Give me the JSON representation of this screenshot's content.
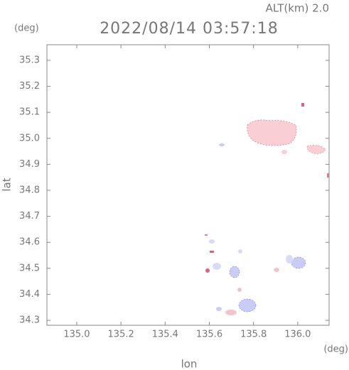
{
  "chart_data": {
    "type": "map",
    "title": "2022/08/14 03:57:18",
    "subtitle": "ALT(km) 2.0",
    "y_unit": "(deg)",
    "x_unit": "(deg)",
    "x_label": "lon",
    "y_label": "lat",
    "xlim": [
      134.865,
      136.142
    ],
    "ylim": [
      34.281,
      35.36
    ],
    "xticks": [
      {
        "value": 135.0,
        "label": "135.0"
      },
      135.2,
      135.4,
      135.6,
      135.8,
      {
        "value": 136.0,
        "label": "136.0"
      }
    ],
    "yticks": [
      34.3,
      34.4,
      34.5,
      34.6,
      34.7,
      34.8,
      34.9,
      {
        "value": 35.0,
        "label": "35.0"
      },
      35.1,
      35.2,
      35.3
    ]
  }
}
